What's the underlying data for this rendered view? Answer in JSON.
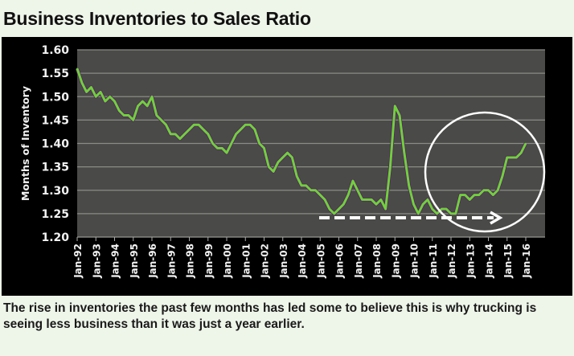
{
  "title": "Business Inventories to Sales Ratio",
  "caption": "The rise in inventories the past few months has led some to believe this is why trucking is seeing less business than it was just a year earlier.",
  "chart_data": {
    "type": "line",
    "title": "",
    "xlabel": "",
    "ylabel": "Months of Inventory",
    "ylim": [
      1.2,
      1.6
    ],
    "yticks": [
      "1.60",
      "1.55",
      "1.50",
      "1.45",
      "1.40",
      "1.35",
      "1.30",
      "1.25",
      "1.20"
    ],
    "xticks": [
      "Jan-92",
      "Jan-93",
      "Jan-94",
      "Jan-95",
      "Jan-96",
      "Jan-97",
      "Jan-98",
      "Jan-99",
      "Jan-00",
      "Jan-01",
      "Jan-02",
      "Jan-03",
      "Jan-04",
      "Jan-05",
      "Jan-06",
      "Jan-07",
      "Jan-08",
      "Jan-09",
      "Jan-10",
      "Jan-11",
      "Jan-12",
      "Jan-13",
      "Jan-14",
      "Jan-15",
      "Jan-16"
    ],
    "grid": true,
    "line_color": "#6fd13a",
    "plot_background": "#4a4a48",
    "annotations": [
      "circle around 2012-2016 rise",
      "dashed arrow along 1.25 floor from 2005 to 2014"
    ],
    "x": [
      "1992-01",
      "1992-04",
      "1992-07",
      "1992-10",
      "1993-01",
      "1993-04",
      "1993-07",
      "1993-10",
      "1994-01",
      "1994-04",
      "1994-07",
      "1994-10",
      "1995-01",
      "1995-04",
      "1995-07",
      "1995-10",
      "1996-01",
      "1996-04",
      "1996-07",
      "1996-10",
      "1997-01",
      "1997-04",
      "1997-07",
      "1997-10",
      "1998-01",
      "1998-04",
      "1998-07",
      "1998-10",
      "1999-01",
      "1999-04",
      "1999-07",
      "1999-10",
      "2000-01",
      "2000-04",
      "2000-07",
      "2000-10",
      "2001-01",
      "2001-04",
      "2001-07",
      "2001-10",
      "2002-01",
      "2002-04",
      "2002-07",
      "2002-10",
      "2003-01",
      "2003-04",
      "2003-07",
      "2003-10",
      "2004-01",
      "2004-04",
      "2004-07",
      "2004-10",
      "2005-01",
      "2005-04",
      "2005-07",
      "2005-10",
      "2006-01",
      "2006-04",
      "2006-07",
      "2006-10",
      "2007-01",
      "2007-04",
      "2007-07",
      "2007-10",
      "2008-01",
      "2008-04",
      "2008-07",
      "2008-10",
      "2009-01",
      "2009-04",
      "2009-07",
      "2009-10",
      "2010-01",
      "2010-04",
      "2010-07",
      "2010-10",
      "2011-01",
      "2011-04",
      "2011-07",
      "2011-10",
      "2012-01",
      "2012-04",
      "2012-07",
      "2012-10",
      "2013-01",
      "2013-04",
      "2013-07",
      "2013-10",
      "2014-01",
      "2014-04",
      "2014-07",
      "2014-10",
      "2015-01",
      "2015-04",
      "2015-07",
      "2015-10",
      "2016-01"
    ],
    "values": [
      1.56,
      1.53,
      1.51,
      1.52,
      1.5,
      1.51,
      1.49,
      1.5,
      1.49,
      1.47,
      1.46,
      1.46,
      1.45,
      1.48,
      1.49,
      1.48,
      1.5,
      1.46,
      1.45,
      1.44,
      1.42,
      1.42,
      1.41,
      1.42,
      1.43,
      1.44,
      1.44,
      1.43,
      1.42,
      1.4,
      1.39,
      1.39,
      1.38,
      1.4,
      1.42,
      1.43,
      1.44,
      1.44,
      1.43,
      1.4,
      1.39,
      1.35,
      1.34,
      1.36,
      1.37,
      1.38,
      1.37,
      1.33,
      1.31,
      1.31,
      1.3,
      1.3,
      1.29,
      1.28,
      1.26,
      1.25,
      1.26,
      1.27,
      1.29,
      1.32,
      1.3,
      1.28,
      1.28,
      1.28,
      1.27,
      1.28,
      1.26,
      1.35,
      1.48,
      1.46,
      1.38,
      1.31,
      1.27,
      1.25,
      1.27,
      1.28,
      1.26,
      1.25,
      1.26,
      1.26,
      1.25,
      1.25,
      1.29,
      1.29,
      1.28,
      1.29,
      1.29,
      1.3,
      1.3,
      1.29,
      1.3,
      1.33,
      1.37,
      1.37,
      1.37,
      1.38,
      1.4
    ]
  }
}
